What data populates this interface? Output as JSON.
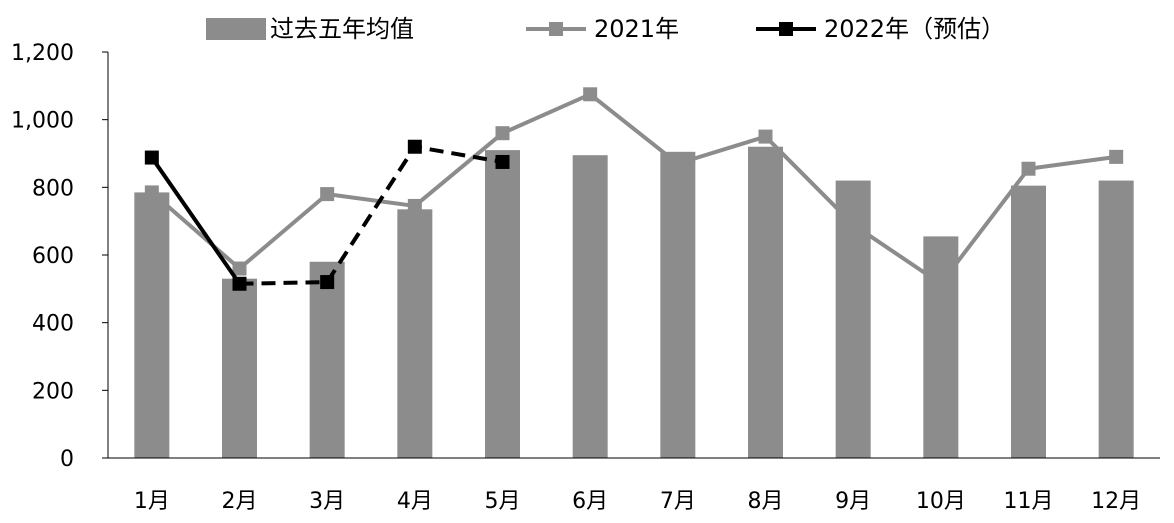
{
  "colors": {
    "avg": "#8c8c8c",
    "y2021": "#8c8c8c",
    "y2022": "#000000",
    "axis": "#000000"
  },
  "chart_data": {
    "type": "bar",
    "title": "",
    "xlabel": "",
    "ylabel": "",
    "categories": [
      "1月",
      "2月",
      "3月",
      "4月",
      "5月",
      "6月",
      "7月",
      "8月",
      "9月",
      "10月",
      "11月",
      "12月"
    ],
    "ylim": [
      0,
      1200
    ],
    "yticks": [
      0,
      200,
      400,
      600,
      800,
      1000,
      1200
    ],
    "ytick_labels": [
      "0",
      "200",
      "400",
      "600",
      "800",
      "1,000",
      "1,200"
    ],
    "grid": false,
    "legend_position": "top",
    "series": [
      {
        "name": "过去五年均值",
        "type": "bar",
        "values": [
          785,
          530,
          580,
          735,
          910,
          895,
          905,
          920,
          820,
          655,
          805,
          820
        ]
      },
      {
        "name": "2021年",
        "type": "line",
        "marker": "square",
        "line_style": "solid",
        "values": [
          785,
          560,
          780,
          745,
          960,
          1075,
          870,
          950,
          690,
          515,
          855,
          890
        ]
      },
      {
        "name": "2022年（预估）",
        "type": "line",
        "marker": "square",
        "line_style": "solid-then-dashed",
        "solid_through_index": 1,
        "values": [
          888,
          515,
          520,
          920,
          875,
          null,
          null,
          null,
          null,
          null,
          null,
          null
        ]
      }
    ]
  }
}
